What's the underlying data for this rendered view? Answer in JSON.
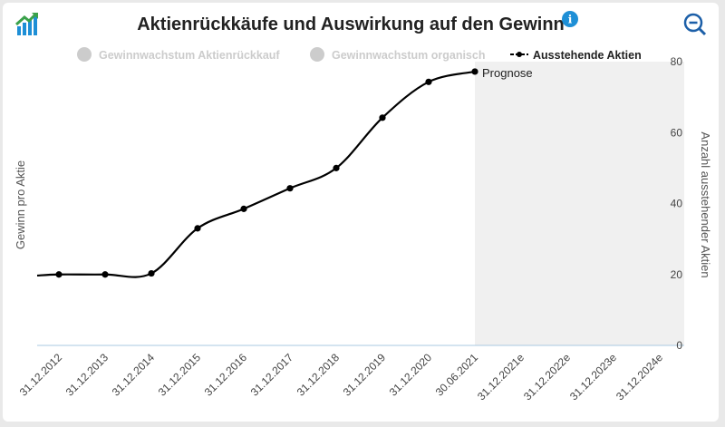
{
  "header": {
    "title": "Aktienrückkäufe und Auswirkung auf den Gewinn"
  },
  "colors": {
    "accent": "#1e8fd6",
    "forecast_band": "#f0f0f0",
    "line": "#000000",
    "legend_inactive": "#cccccc"
  },
  "chart_data": {
    "type": "line",
    "title": "Aktienrückkäufe und Auswirkung auf den Gewinn",
    "categories": [
      "31.12.2012",
      "31.12.2013",
      "31.12.2014",
      "31.12.2015",
      "31.12.2016",
      "31.12.2017",
      "31.12.2018",
      "31.12.2019",
      "31.12.2020",
      "30.06.2021",
      "31.12.2021e",
      "31.12.2022e",
      "31.12.2023e",
      "31.12.2024e"
    ],
    "series": [
      {
        "name": "Ausstehende Aktien",
        "values": [
          20,
          20,
          20.3,
          33,
          38.5,
          44.3,
          50,
          64.2,
          74.3,
          77.2,
          null,
          null,
          null,
          null
        ]
      }
    ],
    "legend": [
      {
        "name": "Gewinnwachstum Aktienrückkauf",
        "active": false
      },
      {
        "name": "Gewinnwachstum organisch",
        "active": false
      },
      {
        "name": "Ausstehende Aktien",
        "active": true
      }
    ],
    "ylabel_left": "Gewinn pro Aktie",
    "ylabel_right": "Anzahl ausstehender Aktien",
    "yticks_right": [
      "0",
      "20",
      "40",
      "60",
      "80"
    ],
    "ylim_right": [
      0,
      80
    ],
    "forecast_start_category": "30.06.2021",
    "annotation": "Prognose"
  }
}
